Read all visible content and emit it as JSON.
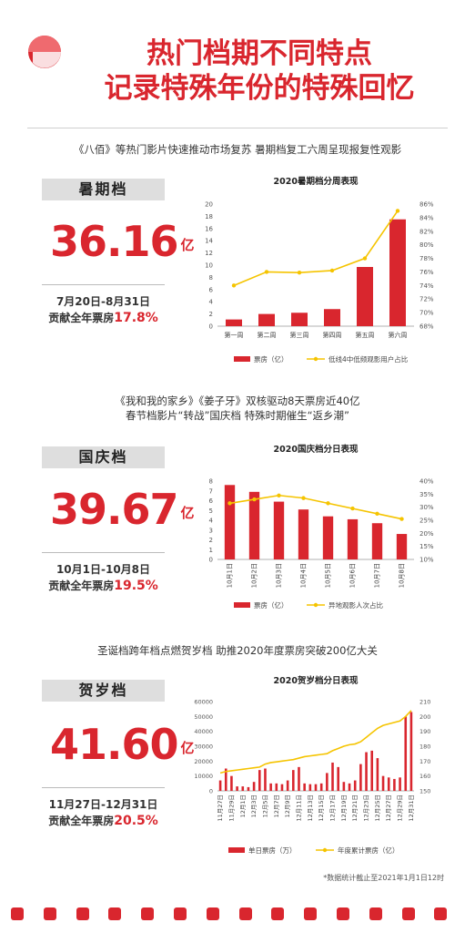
{
  "header": {
    "title_line1": "热门档期不同特点",
    "title_line2": "记录特殊年份的特殊回忆"
  },
  "colors": {
    "accent": "#d9262e",
    "line": "#f5c400",
    "grey_badge": "#dedede"
  },
  "footnote": "*数据统计截止至2021年1月1日12时",
  "sections": [
    {
      "subtitle_lines": [
        "《八佰》等热门影片快速推动市场复苏 暑期档复工六周呈现报复性观影"
      ],
      "badge": "暑期档",
      "big_number": "36.16",
      "unit": "亿",
      "dates": "7月20日-8月31日",
      "contrib_label": "贡献全年票房",
      "contrib_pct": "17.8%"
    },
    {
      "subtitle_lines": [
        "《我和我的家乡》《姜子牙》双核驱动8天票房近40亿",
        "春节档影片“转战”国庆档 特殊时期催生“返乡潮”"
      ],
      "badge": "国庆档",
      "big_number": "39.67",
      "unit": "亿",
      "dates": "10月1日-10月8日",
      "contrib_label": "贡献全年票房",
      "contrib_pct": "19.5%"
    },
    {
      "subtitle_lines": [
        "圣诞档跨年档点燃贺岁档 助推2020年度票房突破200亿大关"
      ],
      "badge": "贺岁档",
      "big_number": "41.60",
      "unit": "亿",
      "dates": "11月27日-12月31日",
      "contrib_label": "贡献全年票房",
      "contrib_pct": "20.5%"
    }
  ],
  "chart_data": [
    {
      "type": "bar",
      "title": "2020暑期档分周表现",
      "categories": [
        "第一周",
        "第二周",
        "第三周",
        "第四周",
        "第五周",
        "第六周"
      ],
      "series": [
        {
          "name": "票房（亿）",
          "type": "bar",
          "axis": "left",
          "values": [
            1.1,
            2.0,
            2.2,
            2.8,
            9.7,
            17.5
          ]
        },
        {
          "name": "低线4中低频观影用户占比",
          "type": "line",
          "axis": "right",
          "values": [
            74,
            76,
            75.9,
            76.2,
            78,
            85
          ]
        }
      ],
      "ylim_left": [
        0,
        20
      ],
      "yticks_left": [
        "0",
        "2",
        "4",
        "6",
        "8",
        "10",
        "12",
        "14",
        "16",
        "18",
        "20"
      ],
      "ylim_right": [
        68,
        86
      ],
      "yticks_right": [
        "68%",
        "70%",
        "72%",
        "74%",
        "76%",
        "78%",
        "80%",
        "82%",
        "84%",
        "86%"
      ]
    },
    {
      "type": "bar",
      "title": "2020国庆档分日表现",
      "categories": [
        "10月1日",
        "10月2日",
        "10月3日",
        "10月4日",
        "10月5日",
        "10月6日",
        "10月7日",
        "10月8日"
      ],
      "series": [
        {
          "name": "票房（亿）",
          "type": "bar",
          "axis": "left",
          "values": [
            7.6,
            6.9,
            5.9,
            5.1,
            4.4,
            4.1,
            3.7,
            2.6
          ]
        },
        {
          "name": "异地观影人次占比",
          "type": "line",
          "axis": "right",
          "values": [
            31.5,
            33,
            34.5,
            33.5,
            31.5,
            29.5,
            27.5,
            25.5
          ]
        }
      ],
      "ylim_left": [
        0,
        8
      ],
      "yticks_left": [
        "0",
        "1",
        "2",
        "3",
        "4",
        "5",
        "6",
        "7",
        "8"
      ],
      "ylim_right": [
        10,
        40
      ],
      "yticks_right": [
        "10%",
        "15%",
        "20%",
        "25%",
        "30%",
        "35%",
        "40%"
      ]
    },
    {
      "type": "bar",
      "title": "2020贺岁档分日表现",
      "categories": [
        "11月27日",
        "11月28日",
        "11月29日",
        "11月30日",
        "12月1日",
        "12月2日",
        "12月3日",
        "12月4日",
        "12月5日",
        "12月6日",
        "12月7日",
        "12月8日",
        "12月9日",
        "12月10日",
        "12月11日",
        "12月12日",
        "12月13日",
        "12月14日",
        "12月15日",
        "12月16日",
        "12月17日",
        "12月18日",
        "12月19日",
        "12月20日",
        "12月21日",
        "12月22日",
        "12月23日",
        "12月24日",
        "12月25日",
        "12月26日",
        "12月27日",
        "12月28日",
        "12月29日",
        "12月30日",
        "12月31日"
      ],
      "tick_labels": [
        "11月27日",
        "11月29日",
        "12月1日",
        "12月3日",
        "12月5日",
        "12月7日",
        "12月9日",
        "12月11日",
        "12月13日",
        "12月15日",
        "12月17日",
        "12月19日",
        "12月21日",
        "12月23日",
        "12月25日",
        "12月27日",
        "12月29日",
        "12月31日"
      ],
      "series": [
        {
          "name": "单日票房（万）",
          "type": "bar",
          "axis": "left",
          "values": [
            7000,
            15000,
            10000,
            3000,
            3000,
            2500,
            6000,
            14000,
            15000,
            5000,
            5000,
            4500,
            7000,
            14000,
            16000,
            5000,
            4500,
            4500,
            5000,
            12000,
            19000,
            16000,
            6000,
            5000,
            7000,
            18000,
            26000,
            27000,
            22000,
            10000,
            9000,
            8000,
            9000,
            50000,
            53000
          ]
        },
        {
          "name": "年度累计票房（亿）",
          "type": "line",
          "axis": "right",
          "values": [
            162,
            163,
            163.5,
            164,
            164.5,
            165,
            165.5,
            166,
            168,
            169,
            169.5,
            170,
            170.5,
            171,
            172,
            173,
            173.5,
            174,
            174.5,
            175,
            177,
            178.5,
            180,
            181,
            181.5,
            183,
            186,
            189,
            192,
            194,
            195,
            196,
            197,
            200,
            204
          ]
        }
      ],
      "ylim_left": [
        0,
        60000
      ],
      "yticks_left": [
        "0",
        "10000",
        "20000",
        "30000",
        "40000",
        "50000",
        "60000"
      ],
      "ylim_right": [
        150,
        210
      ],
      "yticks_right": [
        "150",
        "160",
        "170",
        "180",
        "190",
        "200",
        "210"
      ]
    }
  ]
}
